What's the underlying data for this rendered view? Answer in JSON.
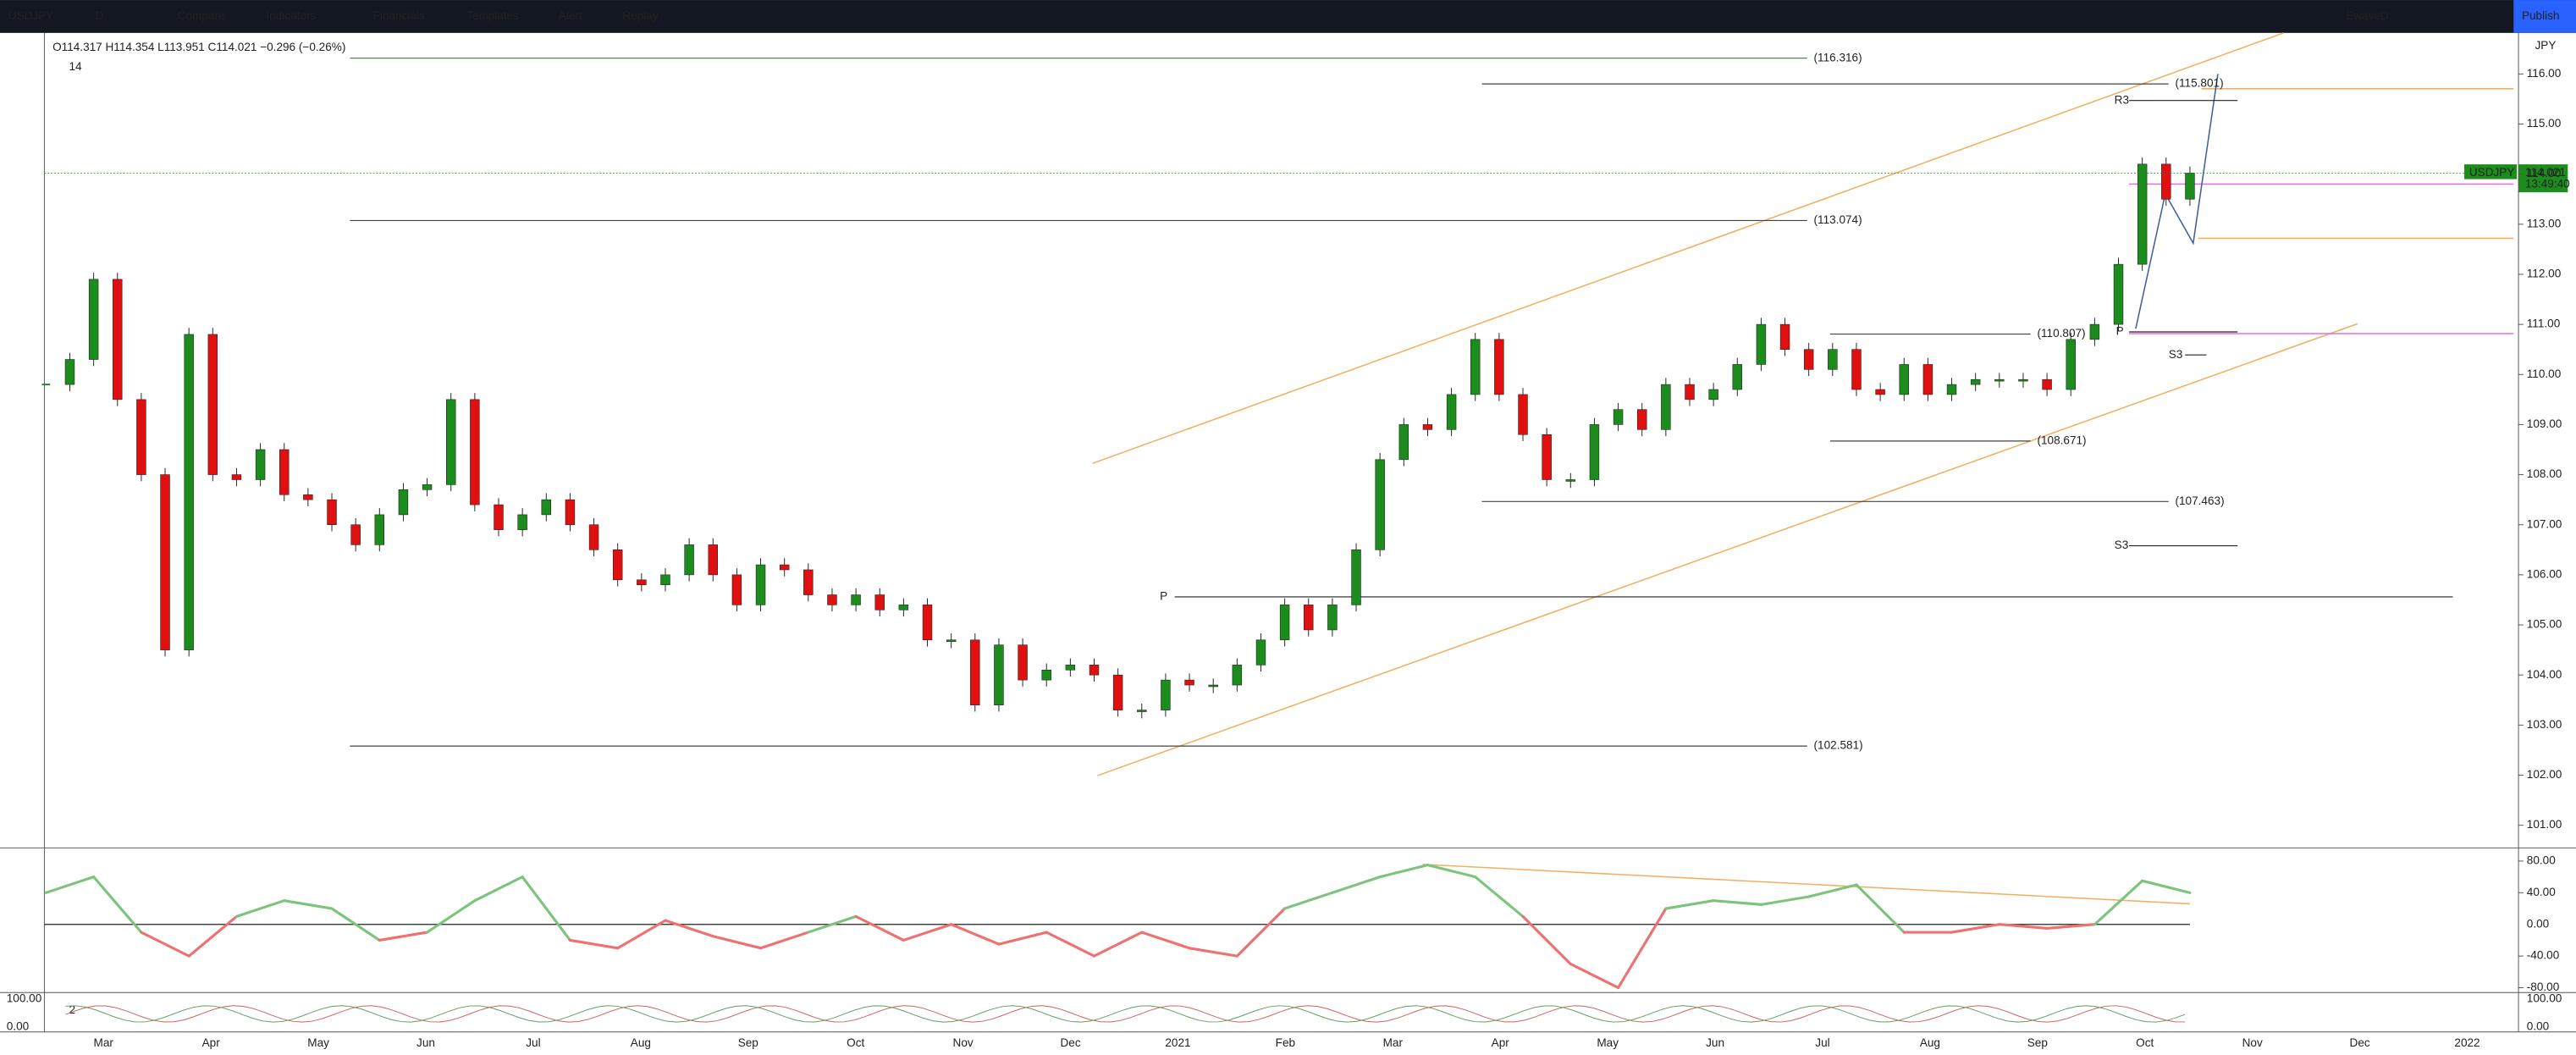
{
  "toolbar": {
    "symbol": "USDJPY",
    "interval": "D",
    "buttons": [
      "Compare",
      "Indicators",
      "Financials",
      "Templates",
      "Alert",
      "Replay"
    ],
    "layout": "EwaveD",
    "publish": "Publish"
  },
  "legend": {
    "ohlc": "O114.317 H114.354 L113.951 C114.021 −0.296 (−0.26%)",
    "length": "14"
  },
  "chart_data": {
    "type": "candlestick",
    "symbol": "USDJPY",
    "currency": "JPY",
    "last": 114.021,
    "countdown": "13:49:40",
    "colors": {
      "up": "#1c8c1c",
      "down": "#e01010"
    },
    "closes": [
      109.8,
      110.3,
      111.9,
      109.5,
      108.0,
      104.5,
      110.8,
      108.0,
      107.9,
      108.5,
      107.6,
      107.5,
      107.0,
      106.6,
      107.2,
      107.7,
      107.8,
      109.5,
      107.4,
      106.9,
      107.2,
      107.5,
      107.0,
      106.5,
      105.9,
      105.8,
      106.0,
      106.6,
      106.0,
      105.4,
      106.2,
      106.1,
      105.6,
      105.4,
      105.6,
      105.3,
      105.4,
      104.7,
      104.7,
      103.4,
      104.6,
      103.9,
      104.1,
      104.2,
      104.0,
      103.3,
      103.3,
      103.9,
      103.8,
      103.8,
      104.2,
      104.7,
      105.4,
      104.9,
      105.4,
      106.5,
      108.3,
      109.0,
      108.9,
      109.6,
      110.7,
      109.6,
      108.8,
      107.9,
      107.9,
      109.0,
      109.3,
      108.9,
      109.8,
      109.5,
      109.7,
      110.2,
      111.0,
      110.5,
      110.1,
      110.5,
      109.7,
      109.6,
      110.2,
      109.6,
      109.8,
      109.9,
      109.9,
      109.9,
      109.7,
      110.7,
      111.0,
      112.2,
      114.2,
      113.5,
      114.021
    ],
    "ylim": [
      100.58,
      116.82
    ],
    "yticks": [
      {
        "value": 101,
        "label": "101.00"
      },
      {
        "value": 102,
        "label": "102.00"
      },
      {
        "value": 103,
        "label": "103.00"
      },
      {
        "value": 104,
        "label": "104.00"
      },
      {
        "value": 105,
        "label": "105.00"
      },
      {
        "value": 106,
        "label": "106.00"
      },
      {
        "value": 107,
        "label": "107.00"
      },
      {
        "value": 108,
        "label": "108.00"
      },
      {
        "value": 109,
        "label": "109.00"
      },
      {
        "value": 110,
        "label": "110.00"
      },
      {
        "value": 111,
        "label": "111.00"
      },
      {
        "value": 112,
        "label": "112.00"
      },
      {
        "value": 113,
        "label": "113.00"
      },
      {
        "value": 114,
        "label": "114.00"
      },
      {
        "value": 115,
        "label": "115.00"
      },
      {
        "value": 116,
        "label": "116.00"
      }
    ],
    "xticks": [
      "Mar",
      "Apr",
      "May",
      "Jun",
      "Jul",
      "Aug",
      "Sep",
      "Oct",
      "Nov",
      "Dec",
      "2021",
      "Feb",
      "Mar",
      "Apr",
      "May",
      "Jun",
      "Jul",
      "Aug",
      "Sep",
      "Oct",
      "Nov",
      "Dec",
      "2022"
    ],
    "levels": [
      {
        "value": 116.316,
        "label": "(116.316)"
      },
      {
        "value": 115.801,
        "label": "(115.801)"
      },
      {
        "value": 113.074,
        "label": "(113.074)"
      },
      {
        "value": 110.807,
        "label": "(110.807)"
      },
      {
        "value": 108.671,
        "label": "(108.671)"
      },
      {
        "value": 107.463,
        "label": "(107.463)"
      },
      {
        "value": 102.581,
        "label": "(102.581)"
      }
    ],
    "pivots": [
      {
        "value": 115.47,
        "label": "R3"
      },
      {
        "value": 110.85,
        "label": "P"
      },
      {
        "value": 110.39,
        "label": "S3"
      },
      {
        "value": 106.58,
        "label": "S3"
      },
      {
        "value": 105.56,
        "label": "P"
      }
    ],
    "rsi": {
      "values": [
        40,
        60,
        -10,
        -40,
        10,
        30,
        20,
        -20,
        -10,
        30,
        60,
        -20,
        -30,
        5,
        -15,
        -30,
        -10,
        10,
        -20,
        0,
        -25,
        -10,
        -40,
        -10,
        -30,
        -40,
        20,
        40,
        60,
        75,
        60,
        10,
        -50,
        -80,
        20,
        30,
        25,
        35,
        50,
        -10,
        -10,
        0,
        -5,
        0,
        55,
        40
      ],
      "ylim": [
        -84,
        94.5
      ],
      "yticks": [
        {
          "value": 80,
          "label": "80.00"
        },
        {
          "value": 40,
          "label": "40.00"
        },
        {
          "value": 0,
          "label": "0.00"
        },
        {
          "value": -40,
          "label": "-40.00"
        },
        {
          "value": -80,
          "label": "-80.00"
        }
      ]
    },
    "oscillator": {
      "length": "2",
      "yticks": [
        {
          "value": 100,
          "label": "100.00"
        },
        {
          "value": 0,
          "label": "0.00"
        }
      ]
    }
  }
}
